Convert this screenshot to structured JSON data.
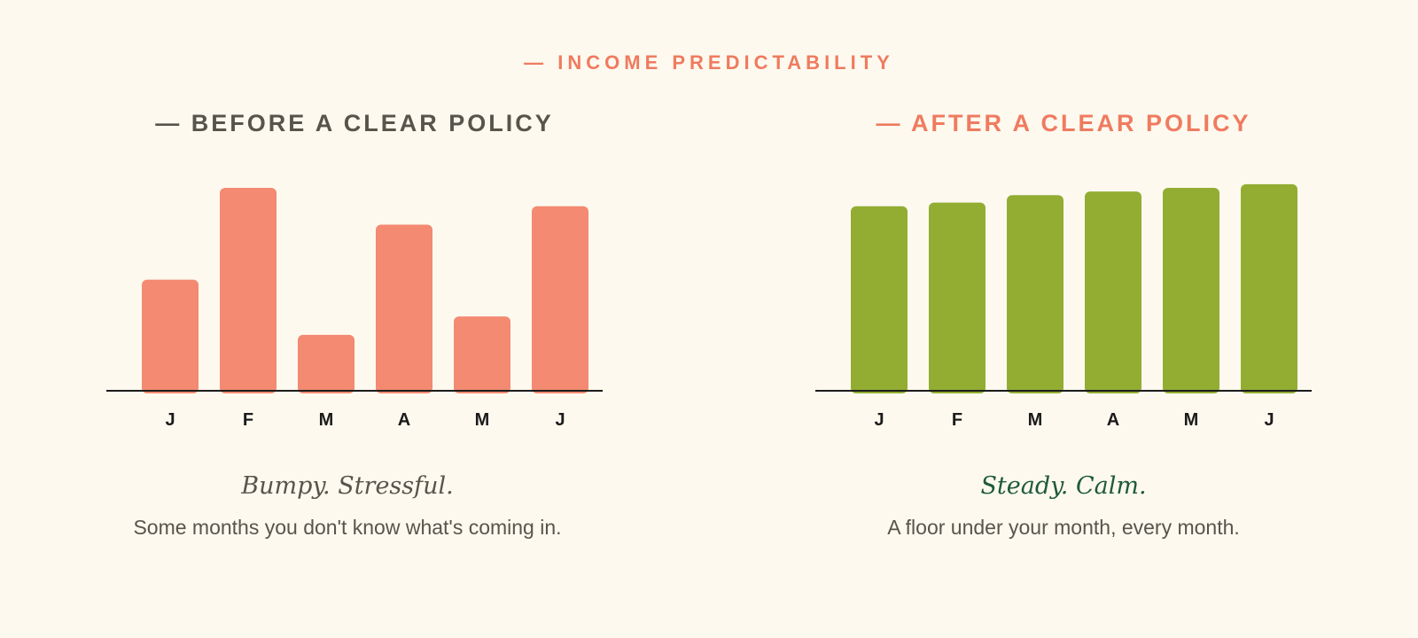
{
  "eyebrow": "— INCOME PREDICTABILITY",
  "colors": {
    "background": "#fdf9ef",
    "coral": "#ef7b5f",
    "bar_before": "#f38a71",
    "bar_after": "#92ad32",
    "heading_dark": "#57554b",
    "tagline_green": "#1f5a3a",
    "axis": "#1b1b1b"
  },
  "panels": [
    {
      "title": "— BEFORE A CLEAR POLICY",
      "tagline": "Bumpy. Stressful.",
      "caption": "Some months you don't know what's coming in."
    },
    {
      "title": "— AFTER A CLEAR POLICY",
      "tagline": "Steady. Calm.",
      "caption": "A floor under your month, every month."
    }
  ],
  "chart_data": [
    {
      "type": "bar",
      "categories": [
        "J",
        "F",
        "M",
        "A",
        "M",
        "J"
      ],
      "values": [
        60,
        110,
        30,
        90,
        40,
        100
      ],
      "ylim": [
        0,
        110
      ],
      "grid": false,
      "color": "#f38a71"
    },
    {
      "type": "bar",
      "categories": [
        "J",
        "F",
        "M",
        "A",
        "M",
        "J"
      ],
      "values": [
        100,
        102,
        106,
        108,
        110,
        112
      ],
      "ylim": [
        0,
        110
      ],
      "grid": false,
      "color": "#92ad32"
    }
  ]
}
